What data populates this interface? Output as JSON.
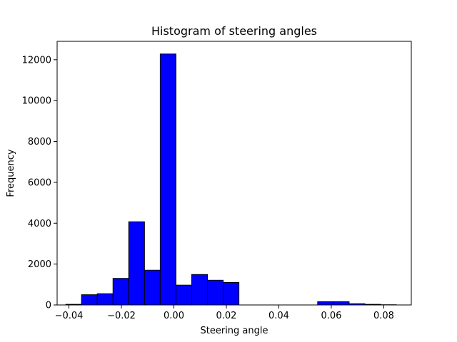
{
  "chart_data": {
    "type": "bar",
    "title": "Histogram of steering angles",
    "xlabel": "Steering angle",
    "ylabel": "Frequency",
    "xlim": [
      -0.0445,
      0.0905
    ],
    "ylim": [
      0,
      12900
    ],
    "grid": false,
    "bar_color": "#0000ff",
    "edge_color": "#000000",
    "x_ticks": [
      -0.04,
      -0.02,
      0.0,
      0.02,
      0.04,
      0.06,
      0.08
    ],
    "x_tick_labels": [
      "−0.04",
      "−0.02",
      "0.00",
      "0.02",
      "0.04",
      "0.06",
      "0.08"
    ],
    "y_ticks": [
      0,
      2000,
      4000,
      6000,
      8000,
      10000,
      12000
    ],
    "y_tick_labels": [
      "0",
      "2000",
      "4000",
      "6000",
      "8000",
      "10000",
      "12000"
    ],
    "bins": [
      {
        "x0": -0.0412,
        "x1": -0.0352,
        "count": 30
      },
      {
        "x0": -0.0352,
        "x1": -0.0292,
        "count": 500
      },
      {
        "x0": -0.0292,
        "x1": -0.0232,
        "count": 550
      },
      {
        "x0": -0.0232,
        "x1": -0.0172,
        "count": 1300
      },
      {
        "x0": -0.0172,
        "x1": -0.0112,
        "count": 4070
      },
      {
        "x0": -0.0112,
        "x1": -0.0052,
        "count": 1700
      },
      {
        "x0": -0.0052,
        "x1": 0.0008,
        "count": 12280
      },
      {
        "x0": 0.0008,
        "x1": 0.0068,
        "count": 970
      },
      {
        "x0": 0.0068,
        "x1": 0.0128,
        "count": 1490
      },
      {
        "x0": 0.0128,
        "x1": 0.0188,
        "count": 1210
      },
      {
        "x0": 0.0188,
        "x1": 0.0248,
        "count": 1100
      },
      {
        "x0": 0.0248,
        "x1": 0.0308,
        "count": 0
      },
      {
        "x0": 0.0308,
        "x1": 0.0368,
        "count": 0
      },
      {
        "x0": 0.0368,
        "x1": 0.0428,
        "count": 0
      },
      {
        "x0": 0.0428,
        "x1": 0.0488,
        "count": 0
      },
      {
        "x0": 0.0488,
        "x1": 0.0548,
        "count": 0
      },
      {
        "x0": 0.0548,
        "x1": 0.0608,
        "count": 160
      },
      {
        "x0": 0.0608,
        "x1": 0.0668,
        "count": 160
      },
      {
        "x0": 0.0668,
        "x1": 0.0728,
        "count": 60
      },
      {
        "x0": 0.0728,
        "x1": 0.0788,
        "count": 30
      },
      {
        "x0": 0.0788,
        "x1": 0.0848,
        "count": 10
      }
    ]
  }
}
